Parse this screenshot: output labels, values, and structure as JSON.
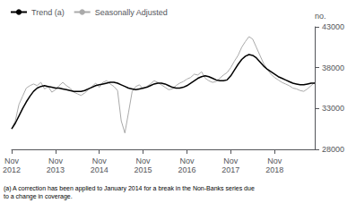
{
  "chart_data": {
    "type": "line",
    "ylabel": "no.",
    "annotations": [
      "(a) A correction has been applied to January 2014 for a break in the Non-Banks series due\nto a change in coverage."
    ],
    "categories": [
      "Nov\n2012",
      null,
      null,
      null,
      null,
      null,
      null,
      null,
      null,
      null,
      null,
      null,
      "Nov\n2013",
      null,
      null,
      null,
      null,
      null,
      null,
      null,
      null,
      null,
      null,
      null,
      "Nov\n2014",
      null,
      null,
      null,
      null,
      null,
      null,
      null,
      null,
      null,
      null,
      null,
      "Nov\n2015",
      null,
      null,
      null,
      null,
      null,
      null,
      null,
      null,
      null,
      null,
      null,
      "Nov\n2016",
      null,
      null,
      null,
      null,
      null,
      null,
      null,
      null,
      null,
      null,
      null,
      "Nov\n2017",
      null,
      null,
      null,
      null,
      null,
      null,
      null,
      null,
      null,
      null,
      null,
      "Nov\n2018",
      null,
      null,
      null,
      null,
      null,
      null,
      null,
      null,
      null,
      null,
      null
    ],
    "series": [
      {
        "name": "Trend (a)",
        "color": "#000000",
        "values": [
          30500,
          31200,
          32100,
          33000,
          33800,
          34500,
          35100,
          35500,
          35700,
          35800,
          35700,
          35600,
          35500,
          35500,
          35400,
          35300,
          35200,
          35100,
          35100,
          35100,
          35200,
          35400,
          35600,
          35800,
          35900,
          36000,
          36100,
          36200,
          36200,
          36100,
          35900,
          35700,
          35500,
          35400,
          35300,
          35400,
          35500,
          35600,
          35800,
          36000,
          36100,
          36100,
          36000,
          35800,
          35600,
          35500,
          35500,
          35600,
          35800,
          36100,
          36400,
          36700,
          36900,
          37000,
          36900,
          36700,
          36500,
          36400,
          36400,
          36500,
          37000,
          37700,
          38400,
          39000,
          39400,
          39600,
          39500,
          39200,
          38700,
          38200,
          37800,
          37500,
          37200,
          36900,
          36700,
          36500,
          36300,
          36100,
          36000,
          35900,
          35900,
          36000,
          36100,
          36100
        ]
      },
      {
        "name": "Seasonally Adjusted",
        "color": "#aaaaaa",
        "values": [
          30500,
          31500,
          33500,
          34500,
          35500,
          35800,
          36000,
          35800,
          36200,
          35400,
          35700,
          35000,
          35300,
          35800,
          36200,
          35800,
          35500,
          35000,
          34800,
          34600,
          34900,
          35300,
          35700,
          36100,
          35600,
          36200,
          36400,
          36000,
          35700,
          35200,
          31500,
          30000,
          32500,
          35100,
          35700,
          35900,
          35400,
          35700,
          36000,
          36400,
          36200,
          35900,
          35600,
          35300,
          35400,
          35800,
          36100,
          36300,
          36600,
          36800,
          37200,
          37100,
          37500,
          36700,
          36400,
          36200,
          36300,
          36700,
          37100,
          37400,
          38000,
          38800,
          39500,
          40500,
          41200,
          41800,
          41500,
          40500,
          39500,
          38500,
          37800,
          37200,
          36800,
          36500,
          36200,
          36000,
          35800,
          35500,
          35400,
          35200,
          35100,
          35400,
          35800,
          36200
        ]
      }
    ],
    "ylim": [
      28000,
      43000
    ],
    "yticks": [
      28000,
      33000,
      38000,
      43000
    ],
    "grid": false,
    "legend": "upper left"
  }
}
